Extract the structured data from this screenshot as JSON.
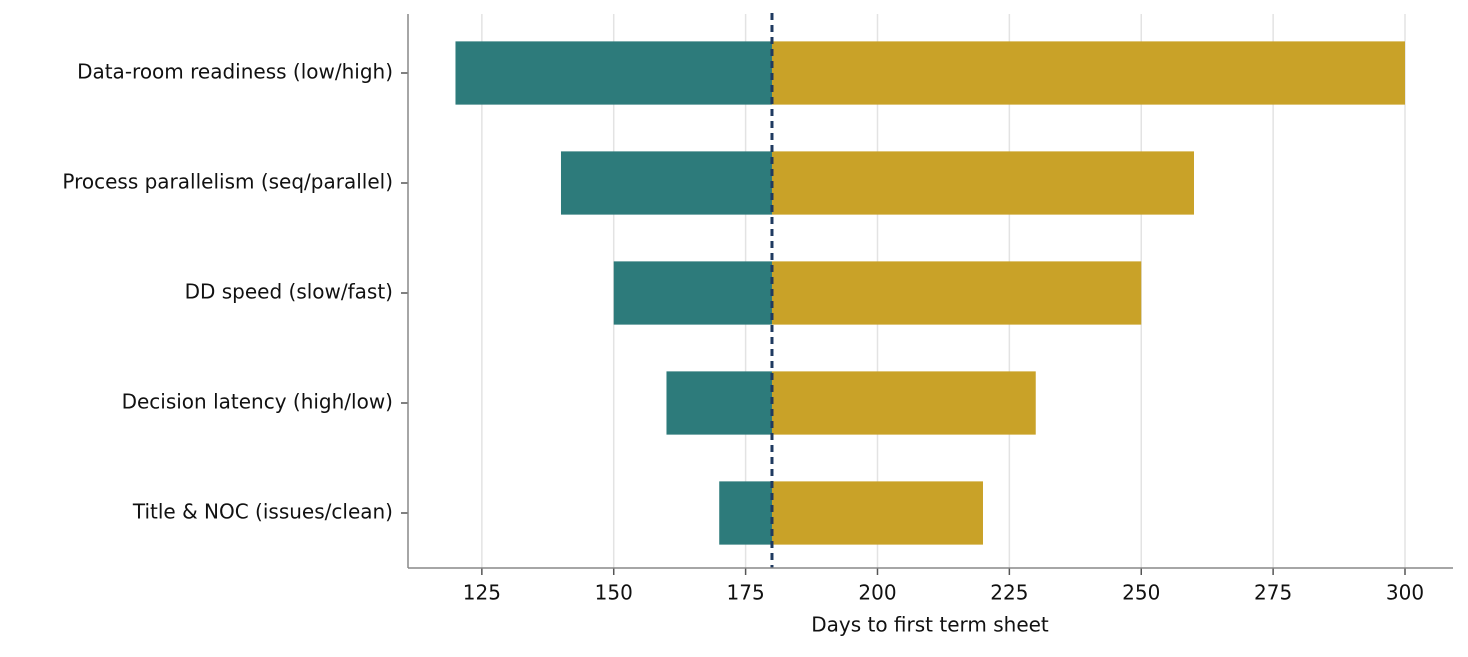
{
  "chart_data": {
    "type": "tornado",
    "xlabel": "Days to first term sheet",
    "categories": [
      "Data-room readiness (low/high)",
      "Process parallelism (seq/parallel)",
      "DD speed (slow/fast)",
      "Decision latency (high/low)",
      "Title & NOC (issues/clean)"
    ],
    "base": 180,
    "series": [
      {
        "color": "#2d7b7b",
        "values": [
          120,
          140,
          150,
          160,
          170
        ]
      },
      {
        "color": "#c9a228",
        "values": [
          300,
          260,
          250,
          230,
          220
        ]
      }
    ],
    "base_line_color": "#1f3a60",
    "xlim": [
      111,
      309.1
    ],
    "xticks": [
      125,
      150,
      175,
      200,
      225,
      250,
      275,
      300
    ],
    "grid": true
  }
}
